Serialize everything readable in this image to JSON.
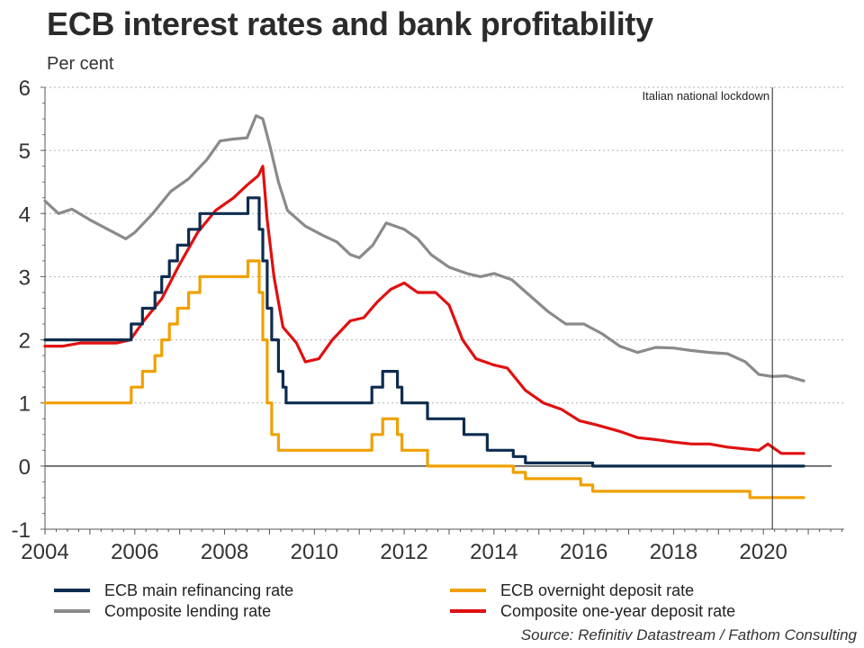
{
  "chart_data": {
    "type": "line",
    "title": "ECB interest rates and bank profitability",
    "ylabel": "Per cent",
    "xlabel": "",
    "xlim": [
      2004,
      2021.8
    ],
    "ylim": [
      -1,
      6
    ],
    "yticks": [
      "-1",
      "0",
      "1",
      "2",
      "3",
      "4",
      "5",
      "6"
    ],
    "xticks": [
      "2004",
      "2006",
      "2008",
      "2010",
      "2012",
      "2014",
      "2016",
      "2018",
      "2020"
    ],
    "grid": "horizontal dotted",
    "annotation": {
      "label": "Italian national lockdown",
      "x": 2020.2
    },
    "source": "Source: Refinitiv Datastream / Fathom Consulting",
    "series": [
      {
        "name": "ECB main refinancing rate",
        "color": "#0d2c4f",
        "step": true,
        "points": [
          [
            2004,
            2.0
          ],
          [
            2005.92,
            2.0
          ],
          [
            2005.92,
            2.25
          ],
          [
            2006.17,
            2.25
          ],
          [
            2006.17,
            2.5
          ],
          [
            2006.45,
            2.5
          ],
          [
            2006.45,
            2.75
          ],
          [
            2006.6,
            2.75
          ],
          [
            2006.6,
            3.0
          ],
          [
            2006.77,
            3.0
          ],
          [
            2006.77,
            3.25
          ],
          [
            2006.95,
            3.25
          ],
          [
            2006.95,
            3.5
          ],
          [
            2007.2,
            3.5
          ],
          [
            2007.2,
            3.75
          ],
          [
            2007.45,
            3.75
          ],
          [
            2007.45,
            4.0
          ],
          [
            2008.52,
            4.0
          ],
          [
            2008.52,
            4.25
          ],
          [
            2008.77,
            4.25
          ],
          [
            2008.77,
            3.75
          ],
          [
            2008.85,
            3.75
          ],
          [
            2008.85,
            3.25
          ],
          [
            2008.95,
            3.25
          ],
          [
            2008.95,
            2.5
          ],
          [
            2009.05,
            2.5
          ],
          [
            2009.05,
            2.0
          ],
          [
            2009.2,
            2.0
          ],
          [
            2009.2,
            1.5
          ],
          [
            2009.3,
            1.5
          ],
          [
            2009.3,
            1.25
          ],
          [
            2009.37,
            1.25
          ],
          [
            2009.37,
            1.0
          ],
          [
            2011.28,
            1.0
          ],
          [
            2011.28,
            1.25
          ],
          [
            2011.52,
            1.25
          ],
          [
            2011.52,
            1.5
          ],
          [
            2011.85,
            1.5
          ],
          [
            2011.85,
            1.25
          ],
          [
            2011.95,
            1.25
          ],
          [
            2011.95,
            1.0
          ],
          [
            2012.52,
            1.0
          ],
          [
            2012.52,
            0.75
          ],
          [
            2013.33,
            0.75
          ],
          [
            2013.33,
            0.5
          ],
          [
            2013.85,
            0.5
          ],
          [
            2013.85,
            0.25
          ],
          [
            2014.43,
            0.25
          ],
          [
            2014.43,
            0.15
          ],
          [
            2014.7,
            0.15
          ],
          [
            2014.7,
            0.05
          ],
          [
            2016.2,
            0.05
          ],
          [
            2016.2,
            0.0
          ],
          [
            2020.9,
            0.0
          ]
        ]
      },
      {
        "name": "ECB overnight deposit rate",
        "color": "#f0a000",
        "step": true,
        "points": [
          [
            2004,
            1.0
          ],
          [
            2005.92,
            1.0
          ],
          [
            2005.92,
            1.25
          ],
          [
            2006.17,
            1.25
          ],
          [
            2006.17,
            1.5
          ],
          [
            2006.45,
            1.5
          ],
          [
            2006.45,
            1.75
          ],
          [
            2006.6,
            1.75
          ],
          [
            2006.6,
            2.0
          ],
          [
            2006.77,
            2.0
          ],
          [
            2006.77,
            2.25
          ],
          [
            2006.95,
            2.25
          ],
          [
            2006.95,
            2.5
          ],
          [
            2007.2,
            2.5
          ],
          [
            2007.2,
            2.75
          ],
          [
            2007.45,
            2.75
          ],
          [
            2007.45,
            3.0
          ],
          [
            2008.52,
            3.0
          ],
          [
            2008.52,
            3.25
          ],
          [
            2008.77,
            3.25
          ],
          [
            2008.77,
            2.75
          ],
          [
            2008.85,
            2.75
          ],
          [
            2008.85,
            2.0
          ],
          [
            2008.95,
            2.0
          ],
          [
            2008.95,
            1.0
          ],
          [
            2009.05,
            1.0
          ],
          [
            2009.05,
            0.5
          ],
          [
            2009.2,
            0.5
          ],
          [
            2009.2,
            0.25
          ],
          [
            2011.28,
            0.25
          ],
          [
            2011.28,
            0.5
          ],
          [
            2011.52,
            0.5
          ],
          [
            2011.52,
            0.75
          ],
          [
            2011.85,
            0.75
          ],
          [
            2011.85,
            0.5
          ],
          [
            2011.95,
            0.5
          ],
          [
            2011.95,
            0.25
          ],
          [
            2012.52,
            0.25
          ],
          [
            2012.52,
            0.0
          ],
          [
            2014.43,
            0.0
          ],
          [
            2014.43,
            -0.1
          ],
          [
            2014.7,
            -0.1
          ],
          [
            2014.7,
            -0.2
          ],
          [
            2015.93,
            -0.2
          ],
          [
            2015.93,
            -0.3
          ],
          [
            2016.2,
            -0.3
          ],
          [
            2016.2,
            -0.4
          ],
          [
            2019.7,
            -0.4
          ],
          [
            2019.7,
            -0.5
          ],
          [
            2020.9,
            -0.5
          ]
        ]
      },
      {
        "name": "Composite lending rate",
        "color": "#8a8a8a",
        "step": false,
        "points": [
          [
            2004,
            4.2
          ],
          [
            2004.3,
            4.0
          ],
          [
            2004.6,
            4.07
          ],
          [
            2005.0,
            3.9
          ],
          [
            2005.4,
            3.75
          ],
          [
            2005.8,
            3.6
          ],
          [
            2006.0,
            3.7
          ],
          [
            2006.4,
            4.0
          ],
          [
            2006.8,
            4.35
          ],
          [
            2007.2,
            4.55
          ],
          [
            2007.6,
            4.85
          ],
          [
            2007.9,
            5.15
          ],
          [
            2008.2,
            5.18
          ],
          [
            2008.5,
            5.2
          ],
          [
            2008.7,
            5.55
          ],
          [
            2008.85,
            5.5
          ],
          [
            2009.0,
            5.1
          ],
          [
            2009.2,
            4.5
          ],
          [
            2009.4,
            4.05
          ],
          [
            2009.8,
            3.8
          ],
          [
            2010.2,
            3.65
          ],
          [
            2010.5,
            3.55
          ],
          [
            2010.8,
            3.35
          ],
          [
            2011.0,
            3.3
          ],
          [
            2011.3,
            3.5
          ],
          [
            2011.6,
            3.85
          ],
          [
            2011.8,
            3.8
          ],
          [
            2012.0,
            3.75
          ],
          [
            2012.3,
            3.6
          ],
          [
            2012.6,
            3.35
          ],
          [
            2013.0,
            3.15
          ],
          [
            2013.4,
            3.05
          ],
          [
            2013.7,
            3.0
          ],
          [
            2014.0,
            3.05
          ],
          [
            2014.4,
            2.95
          ],
          [
            2014.8,
            2.7
          ],
          [
            2015.2,
            2.45
          ],
          [
            2015.6,
            2.25
          ],
          [
            2016.0,
            2.25
          ],
          [
            2016.4,
            2.1
          ],
          [
            2016.8,
            1.9
          ],
          [
            2017.2,
            1.8
          ],
          [
            2017.6,
            1.88
          ],
          [
            2018.0,
            1.87
          ],
          [
            2018.4,
            1.83
          ],
          [
            2018.8,
            1.8
          ],
          [
            2019.2,
            1.78
          ],
          [
            2019.6,
            1.65
          ],
          [
            2019.9,
            1.45
          ],
          [
            2020.2,
            1.42
          ],
          [
            2020.5,
            1.43
          ],
          [
            2020.9,
            1.35
          ]
        ]
      },
      {
        "name": "Composite one-year deposit rate",
        "color": "#e01010",
        "step": false,
        "points": [
          [
            2004,
            1.9
          ],
          [
            2004.4,
            1.9
          ],
          [
            2004.8,
            1.95
          ],
          [
            2005.2,
            1.95
          ],
          [
            2005.6,
            1.95
          ],
          [
            2005.9,
            2.0
          ],
          [
            2006.2,
            2.3
          ],
          [
            2006.6,
            2.65
          ],
          [
            2007.0,
            3.2
          ],
          [
            2007.4,
            3.7
          ],
          [
            2007.8,
            4.05
          ],
          [
            2008.2,
            4.25
          ],
          [
            2008.5,
            4.45
          ],
          [
            2008.75,
            4.6
          ],
          [
            2008.85,
            4.75
          ],
          [
            2008.95,
            3.9
          ],
          [
            2009.1,
            3.0
          ],
          [
            2009.3,
            2.2
          ],
          [
            2009.6,
            1.95
          ],
          [
            2009.8,
            1.65
          ],
          [
            2010.1,
            1.7
          ],
          [
            2010.4,
            2.0
          ],
          [
            2010.8,
            2.3
          ],
          [
            2011.1,
            2.35
          ],
          [
            2011.4,
            2.6
          ],
          [
            2011.7,
            2.8
          ],
          [
            2012.0,
            2.9
          ],
          [
            2012.3,
            2.75
          ],
          [
            2012.7,
            2.75
          ],
          [
            2013.0,
            2.55
          ],
          [
            2013.3,
            2.0
          ],
          [
            2013.6,
            1.7
          ],
          [
            2014.0,
            1.6
          ],
          [
            2014.3,
            1.55
          ],
          [
            2014.7,
            1.2
          ],
          [
            2015.1,
            1.0
          ],
          [
            2015.5,
            0.9
          ],
          [
            2015.9,
            0.72
          ],
          [
            2016.3,
            0.65
          ],
          [
            2016.8,
            0.55
          ],
          [
            2017.2,
            0.45
          ],
          [
            2017.6,
            0.42
          ],
          [
            2018.0,
            0.38
          ],
          [
            2018.4,
            0.35
          ],
          [
            2018.8,
            0.35
          ],
          [
            2019.2,
            0.3
          ],
          [
            2019.6,
            0.27
          ],
          [
            2019.9,
            0.25
          ],
          [
            2020.1,
            0.35
          ],
          [
            2020.4,
            0.2
          ],
          [
            2020.9,
            0.2
          ]
        ]
      }
    ]
  }
}
